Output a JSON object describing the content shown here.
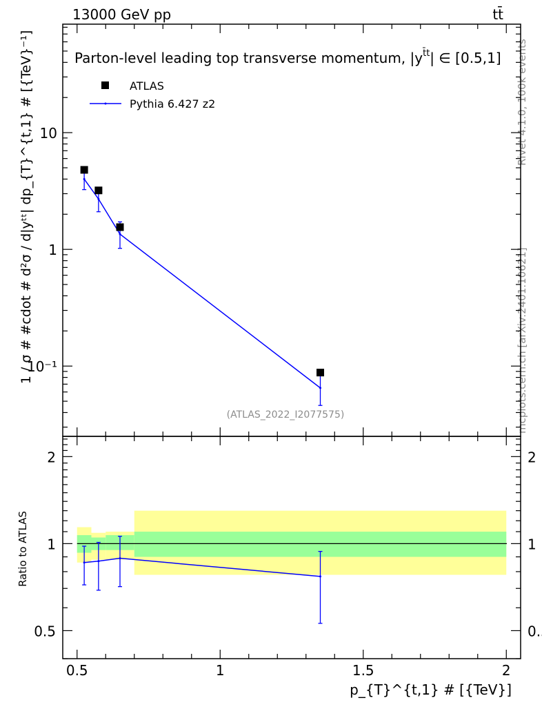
{
  "header": {
    "left": "13000 GeV pp",
    "right": "tt̄"
  },
  "side_labels": {
    "rivet": "Rivet 4.1.0,  100k events",
    "source": "mcplots.cern.ch [arXiv:2401.10621]"
  },
  "chart_data": [
    {
      "type": "scatter",
      "panel": "main",
      "title": "Parton-level leading top transverse momentum, |y",
      "title_sup": "t̄t",
      "title_suffix": "| ∈ [0.5,1]",
      "ylabel": "1 / σ # #cdot # d²σ / d|yᵗᵗ| dp_{T}^{t,1} # [{TeV}⁻¹]",
      "yscale": "log",
      "xlim": [
        0.45,
        2.05
      ],
      "ylim": [
        0.025,
        85
      ],
      "ytick_labels": [
        "10⁻¹",
        "1",
        "10"
      ],
      "ytick_values": [
        0.1,
        1,
        10
      ],
      "analysis_label": "(ATLAS_2022_I2077575)",
      "legend_position": "top-left",
      "series": [
        {
          "name": "ATLAS",
          "style": "markers",
          "color": "#000000",
          "x": [
            0.525,
            0.575,
            0.65,
            1.35
          ],
          "y": [
            4.8,
            3.2,
            1.55,
            0.088
          ]
        },
        {
          "name": "Pythia 6.427 z2",
          "style": "line",
          "color": "#0000ff",
          "x": [
            0.525,
            0.575,
            0.65,
            1.35
          ],
          "y": [
            4.0,
            2.7,
            1.35,
            0.065
          ],
          "err_low": [
            3.25,
            2.1,
            1.02,
            0.046
          ],
          "err_high": [
            4.8,
            3.35,
            1.72,
            0.086
          ]
        }
      ]
    },
    {
      "type": "line",
      "panel": "ratio",
      "ylabel": "Ratio to ATLAS",
      "xlabel": "p_{T}^{t,1} # [{TeV}]",
      "xlim": [
        0.45,
        2.05
      ],
      "ylim": [
        0.4,
        2.35
      ],
      "xtick_values": [
        0.5,
        1,
        1.5,
        2
      ],
      "xtick_labels": [
        "0.5",
        "1",
        "1.5",
        "2"
      ],
      "ytick_values": [
        0.5,
        1,
        2
      ],
      "ytick_labels": [
        "0.5",
        "1",
        "2"
      ],
      "reference_value": 1,
      "bands": [
        {
          "x0": 0.5,
          "x1": 0.55,
          "inner": [
            0.93,
            1.07
          ],
          "outer": [
            0.86,
            1.14
          ]
        },
        {
          "x0": 0.55,
          "x1": 0.6,
          "inner": [
            0.95,
            1.05
          ],
          "outer": [
            0.88,
            1.09
          ]
        },
        {
          "x0": 0.6,
          "x1": 0.7,
          "inner": [
            0.95,
            1.07
          ],
          "outer": [
            0.88,
            1.1
          ]
        },
        {
          "x0": 0.7,
          "x1": 2.0,
          "inner": [
            0.9,
            1.1
          ],
          "outer": [
            0.78,
            1.3
          ]
        }
      ],
      "band_colors": {
        "inner": "#99ff99",
        "outer": "#ffff99"
      },
      "series": [
        {
          "name": "Pythia 6.427 z2",
          "color": "#0000ff",
          "x": [
            0.525,
            0.575,
            0.65,
            1.35
          ],
          "y": [
            0.86,
            0.87,
            0.89,
            0.77
          ],
          "err_low": [
            0.72,
            0.69,
            0.71,
            0.53
          ],
          "err_high": [
            0.98,
            1.01,
            1.06,
            0.94
          ]
        }
      ]
    }
  ]
}
